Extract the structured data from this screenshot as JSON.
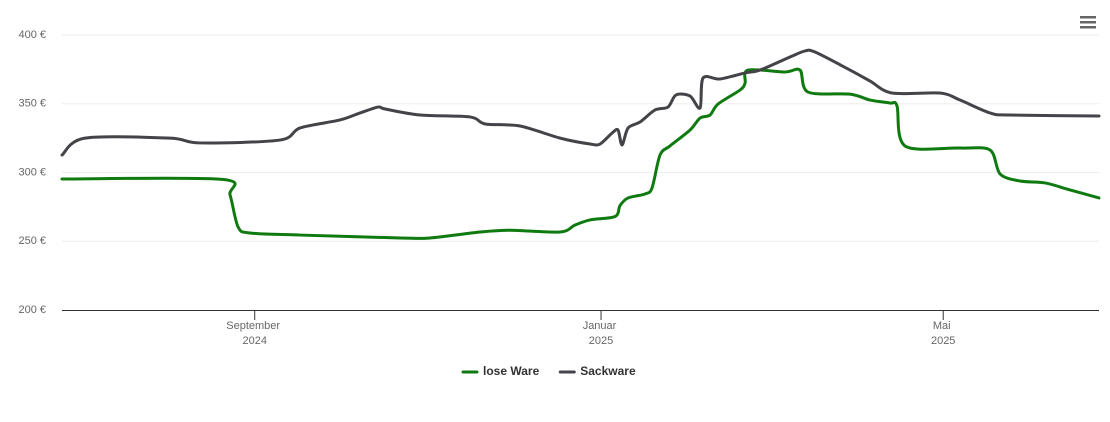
{
  "chart_data": {
    "type": "line",
    "series": [
      {
        "name": "lose Ware",
        "color": "#0f7a0f",
        "x": [
          2024.4817,
          2024.6356,
          2024.6433,
          2024.651,
          2024.6625,
          2024.7106,
          2024.8067,
          2024.8356,
          2024.8837,
          2024.9125,
          2024.9606,
          2024.975,
          2024.9894,
          2025.0135,
          2025.0183,
          2025.026,
          2025.0423,
          2025.049,
          2025.0567,
          2025.0663,
          2025.0856,
          2025.0952,
          2025.1048,
          2025.1125,
          2025.1337,
          2025.1385,
          2025.1413,
          2025.1769,
          2025.1913,
          2025.199,
          2025.2394,
          2025.2587,
          2025.2779,
          2025.2846,
          2025.2923,
          2025.3452,
          2025.374,
          2025.3837,
          2025.4029,
          2025.4269,
          2025.451,
          2025.4788
        ],
        "values": [
          295.3,
          295,
          283.6,
          260.4,
          256,
          254.5,
          252.4,
          252.4,
          256.7,
          258,
          256.7,
          261.8,
          265.5,
          268,
          276,
          281.5,
          284.4,
          288.7,
          312.7,
          319.3,
          330.9,
          339.6,
          341.8,
          349.8,
          360,
          365,
          374.5,
          373.1,
          374.5,
          358.5,
          357,
          352.7,
          350.5,
          348.4,
          319.3,
          317.8,
          316.4,
          298.9,
          293.8,
          292.4,
          287.3,
          281.5
        ]
      },
      {
        "name": "Sackware",
        "color": "#434348",
        "x": [
          2024.4817,
          2024.5038,
          2024.5856,
          2024.6144,
          2024.6913,
          2024.7106,
          2024.749,
          2024.7683,
          2024.7856,
          2024.7923,
          2024.826,
          2024.874,
          2024.8885,
          2024.9221,
          2024.9606,
          2024.9894,
          2024.999,
          2025.0106,
          2025.0163,
          2025.0202,
          2025.026,
          2025.0375,
          2025.0519,
          2025.0644,
          2025.0721,
          2025.0856,
          2025.0952,
          2025.0981,
          2025.1144,
          2025.1385,
          2025.1529,
          2025.1817,
          2025.1962,
          2025.2058,
          2025.2394,
          2025.2587,
          2025.2798,
          2025.326,
          2025.3452,
          2025.374,
          2025.3933,
          2025.4788
        ],
        "values": [
          312.7,
          325,
          325,
          321.5,
          323.6,
          332.4,
          338.2,
          343.3,
          347.6,
          346.2,
          341.8,
          340.4,
          335.3,
          333.8,
          325,
          320.7,
          320.7,
          328.7,
          330.9,
          320,
          332.4,
          336.7,
          345.5,
          347.6,
          356.4,
          355.6,
          346.9,
          368.7,
          368,
          372.4,
          374.5,
          384,
          388.4,
          387.6,
          374.5,
          366.5,
          357.8,
          357.8,
          352.7,
          343.3,
          341.8,
          341.1
        ]
      }
    ],
    "xlim": [
      2024.4817,
      2025.4788
    ],
    "xticks": [
      {
        "value": 2024.667,
        "label": "September 2024"
      },
      {
        "value": 2025.0,
        "label": "Januar 2025"
      },
      {
        "value": 2025.329,
        "label": "Mai 2025"
      }
    ],
    "ylim": [
      200,
      400
    ],
    "yticks": [
      {
        "value": 200,
        "label": "200 €"
      },
      {
        "value": 250,
        "label": "250 €"
      },
      {
        "value": 300,
        "label": "300 €"
      },
      {
        "value": 350,
        "label": "350 €"
      },
      {
        "value": 400,
        "label": "400 €"
      }
    ],
    "grid": true,
    "legend": "bottom"
  }
}
